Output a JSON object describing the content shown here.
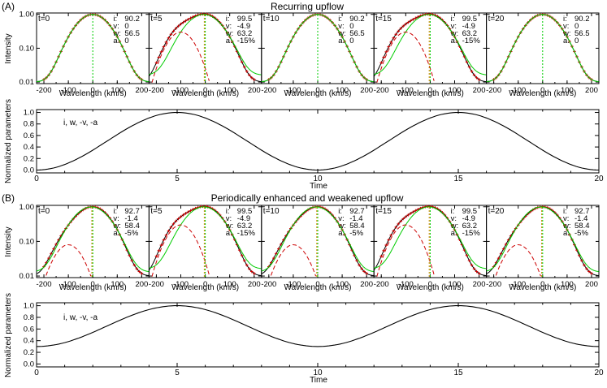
{
  "figure": {
    "sections": [
      {
        "label": "(A)",
        "title": "Recurring upflow",
        "spectra": [
          {
            "t_label": "t=0",
            "stats": {
              "i": "i:",
              "i_val": "90.2",
              "v": "v:",
              "v_val": "0",
              "w": "w:",
              "w_val": "56.5",
              "a": "a:",
              "a_val": "0"
            }
          },
          {
            "t_label": "t=5",
            "stats": {
              "i": "i:",
              "i_val": "99.5",
              "v": "v:",
              "v_val": "-4.9",
              "w": "w:",
              "w_val": "63.2",
              "a": "a:",
              "a_val": "-15%"
            }
          },
          {
            "t_label": "t=10",
            "stats": {
              "i": "i:",
              "i_val": "90.2",
              "v": "v:",
              "v_val": "0",
              "w": "w:",
              "w_val": "56.5",
              "a": "a:",
              "a_val": "0"
            }
          },
          {
            "t_label": "t=15",
            "stats": {
              "i": "i:",
              "i_val": "99.5",
              "v": "v:",
              "v_val": "-4.9",
              "w": "w:",
              "w_val": "63.2",
              "a": "a:",
              "a_val": "-15%"
            }
          },
          {
            "t_label": "t=20",
            "stats": {
              "i": "i:",
              "i_val": "90.2",
              "v": "v:",
              "v_val": "0",
              "w": "w:",
              "w_val": "56.5",
              "a": "a:",
              "a_val": "0"
            }
          }
        ],
        "time_plot": {
          "annotation": "i, w, -v, -a"
        }
      },
      {
        "label": "(B)",
        "title": "Periodically enhanced and weakened upflow",
        "spectra": [
          {
            "t_label": "t=0",
            "stats": {
              "i": "i:",
              "i_val": "92.7",
              "v": "v:",
              "v_val": "-1.4",
              "w": "w:",
              "w_val": "58.4",
              "a": "a:",
              "a_val": "-5%"
            }
          },
          {
            "t_label": "t=5",
            "stats": {
              "i": "i:",
              "i_val": "99.5",
              "v": "v:",
              "v_val": "-4.9",
              "w": "w:",
              "w_val": "63.2",
              "a": "a:",
              "a_val": "-15%"
            }
          },
          {
            "t_label": "t=10",
            "stats": {
              "i": "i:",
              "i_val": "92.7",
              "v": "v:",
              "v_val": "-1.4",
              "w": "w:",
              "w_val": "58.4",
              "a": "a:",
              "a_val": "-5%"
            }
          },
          {
            "t_label": "t=15",
            "stats": {
              "i": "i:",
              "i_val": "99.5",
              "v": "v:",
              "v_val": "-4.9",
              "w": "w:",
              "w_val": "63.2",
              "a": "a:",
              "a_val": "-15%"
            }
          },
          {
            "t_label": "t=20",
            "stats": {
              "i": "i:",
              "i_val": "92.7",
              "v": "v:",
              "v_val": "-1.4",
              "w": "w:",
              "w_val": "58.4",
              "a": "a:",
              "a_val": "-5%"
            }
          }
        ],
        "time_plot": {
          "annotation": "i, w, -v, -a"
        }
      }
    ]
  },
  "chart_data": [
    {
      "type": "line",
      "panel": "A-spectra",
      "xlabel": "Wavelength (km/s)",
      "ylabel": "Intensity",
      "xlim": [
        -230,
        230
      ],
      "yscale": "log",
      "ylim": [
        0.009,
        1.1
      ],
      "x_ticks": [
        -200,
        -100,
        0,
        100,
        200
      ],
      "x_tick_labels": [
        "-200",
        "-100",
        "0",
        "100",
        "200"
      ],
      "y_ticks": [
        0.01,
        0.1,
        1.0
      ],
      "y_tick_labels": [
        "0.01",
        "0.10",
        "1.00"
      ],
      "background": 0.01,
      "colors": {
        "observed": "#cc0000",
        "fit": "#00cc00",
        "component": "#cc0000",
        "centroid": "#00cc00",
        "rest": "#cc8800"
      },
      "profiles": [
        {
          "t": 0,
          "main": {
            "amp": 0.99,
            "center": 0,
            "width": 56.5
          },
          "second": null
        },
        {
          "t": 5,
          "main": {
            "amp": 0.99,
            "center": 0,
            "width": 56.5
          },
          "second": {
            "amp": 0.3,
            "center": -100,
            "width": 45
          }
        },
        {
          "t": 10,
          "main": {
            "amp": 0.99,
            "center": 0,
            "width": 56.5
          },
          "second": null
        },
        {
          "t": 15,
          "main": {
            "amp": 0.99,
            "center": 0,
            "width": 56.5
          },
          "second": {
            "amp": 0.3,
            "center": -100,
            "width": 45
          }
        },
        {
          "t": 20,
          "main": {
            "amp": 0.99,
            "center": 0,
            "width": 56.5
          },
          "second": null
        }
      ]
    },
    {
      "type": "line",
      "panel": "A-time",
      "xlabel": "Time",
      "ylabel": "Normalized parameters",
      "xlim": [
        0,
        20
      ],
      "ylim": [
        -0.05,
        1.05
      ],
      "x_ticks": [
        0,
        5,
        10,
        15,
        20
      ],
      "x_tick_labels": [
        "0",
        "5",
        "10",
        "15",
        "20"
      ],
      "y_ticks": [
        0,
        0.2,
        0.4,
        0.6,
        0.8,
        1.0
      ],
      "y_tick_labels": [
        "0.0",
        "0.2",
        "0.4",
        "0.6",
        "0.8",
        "1.0"
      ],
      "series": [
        {
          "offset": 0.5,
          "amplitude": 0.5,
          "period": 10,
          "peak_at": 5
        }
      ]
    },
    {
      "type": "line",
      "panel": "B-spectra",
      "xlabel": "Wavelength (km/s)",
      "ylabel": "Intensity",
      "xlim": [
        -230,
        230
      ],
      "yscale": "log",
      "ylim": [
        0.009,
        1.1
      ],
      "x_ticks": [
        -200,
        -100,
        0,
        100,
        200
      ],
      "x_tick_labels": [
        "-200",
        "-100",
        "0",
        "100",
        "200"
      ],
      "y_ticks": [
        0.01,
        0.1,
        1.0
      ],
      "y_tick_labels": [
        "0.01",
        "0.10",
        "1.00"
      ],
      "background": 0.01,
      "colors": {
        "observed": "#cc0000",
        "fit": "#00cc00",
        "component": "#cc0000",
        "centroid": "#00cc00",
        "rest": "#cc8800"
      },
      "profiles": [
        {
          "t": 0,
          "main": {
            "amp": 0.99,
            "center": 0,
            "width": 56.5
          },
          "second": {
            "amp": 0.08,
            "center": -100,
            "width": 45
          }
        },
        {
          "t": 5,
          "main": {
            "amp": 0.99,
            "center": 0,
            "width": 56.5
          },
          "second": {
            "amp": 0.3,
            "center": -100,
            "width": 45
          }
        },
        {
          "t": 10,
          "main": {
            "amp": 0.99,
            "center": 0,
            "width": 56.5
          },
          "second": {
            "amp": 0.08,
            "center": -100,
            "width": 45
          }
        },
        {
          "t": 15,
          "main": {
            "amp": 0.99,
            "center": 0,
            "width": 56.5
          },
          "second": {
            "amp": 0.3,
            "center": -100,
            "width": 45
          }
        },
        {
          "t": 20,
          "main": {
            "amp": 0.99,
            "center": 0,
            "width": 56.5
          },
          "second": {
            "amp": 0.08,
            "center": -100,
            "width": 45
          }
        }
      ]
    },
    {
      "type": "line",
      "panel": "B-time",
      "xlabel": "Time",
      "ylabel": "Normalized parameters",
      "xlim": [
        0,
        20
      ],
      "ylim": [
        -0.05,
        1.05
      ],
      "x_ticks": [
        0,
        5,
        10,
        15,
        20
      ],
      "x_tick_labels": [
        "0",
        "5",
        "10",
        "15",
        "20"
      ],
      "y_ticks": [
        0,
        0.2,
        0.4,
        0.6,
        0.8,
        1.0
      ],
      "y_tick_labels": [
        "0.0",
        "0.2",
        "0.4",
        "0.6",
        "0.8",
        "1.0"
      ],
      "series": [
        {
          "offset": 0.65,
          "amplitude": 0.35,
          "period": 10,
          "peak_at": 5
        }
      ]
    }
  ]
}
